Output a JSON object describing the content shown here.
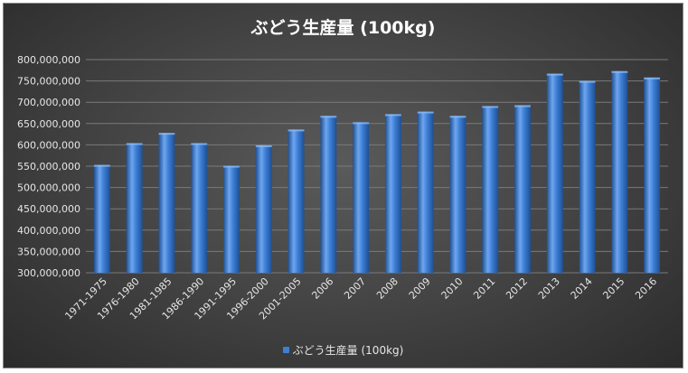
{
  "chart_data": {
    "type": "bar",
    "title": "ぶどう生産量 (100kg)",
    "categories": [
      "1971-1975",
      "1976-1980",
      "1981-1985",
      "1986-1990",
      "1991-1995",
      "1996-2000",
      "2001-2005",
      "2006",
      "2007",
      "2008",
      "2009",
      "2010",
      "2011",
      "2012",
      "2013",
      "2014",
      "2015",
      "2016"
    ],
    "series": [
      {
        "name": "ぶどう生産量 (100kg)",
        "values": [
          553000000,
          604000000,
          628000000,
          604000000,
          551000000,
          599000000,
          636000000,
          668000000,
          653000000,
          672000000,
          678000000,
          668000000,
          691000000,
          693000000,
          767000000,
          750000000,
          773000000,
          758000000
        ]
      }
    ],
    "ylim": [
      300000000,
      800000000
    ],
    "ytick_labels": [
      "300,000,000",
      "350,000,000",
      "400,000,000",
      "450,000,000",
      "500,000,000",
      "550,000,000",
      "600,000,000",
      "650,000,000",
      "700,000,000",
      "750,000,000",
      "800,000,000"
    ],
    "grid": true,
    "legend_position": "bottom",
    "colors": {
      "bar": "#3d7fd6",
      "bar_highlight": "#6ea6ee",
      "bar_shadow": "#1f4f93",
      "grid": "#7a7a7a",
      "text": "#e6e6e6"
    }
  }
}
